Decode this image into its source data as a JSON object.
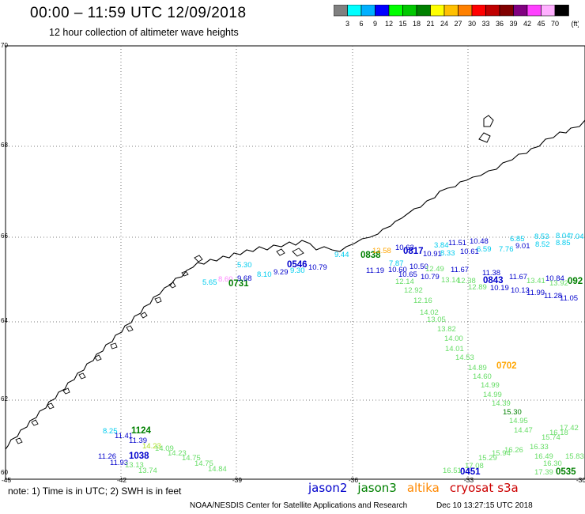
{
  "header": {
    "title": "00:00 – 11:59 UTC 12/09/2018",
    "subtitle": "12 hour collection of altimeter wave heights"
  },
  "colorbar": {
    "unit": "(ft)",
    "ticks": [
      "3",
      "6",
      "9",
      "12",
      "15",
      "18",
      "21",
      "24",
      "27",
      "30",
      "33",
      "36",
      "39",
      "42",
      "45",
      "70"
    ],
    "colors": [
      "#808080",
      "#00ffff",
      "#00b0ff",
      "#0000ff",
      "#00ff00",
      "#00c800",
      "#008000",
      "#ffff00",
      "#ffc000",
      "#ff8000",
      "#ff0000",
      "#c00000",
      "#800000",
      "#800080",
      "#ff40ff",
      "#ffb0ff",
      "#000000"
    ]
  },
  "map": {
    "lat_labels": [
      "70",
      "68",
      "66",
      "64",
      "62",
      "60"
    ],
    "lon_labels": [
      "-45",
      "-42",
      "-39",
      "-36",
      "-33",
      "-30"
    ],
    "labels": [
      {
        "t": "5.30",
        "c": "#00ccee"
      },
      {
        "t": "5.65",
        "c": "#00ccee"
      },
      {
        "t": "8.60",
        "c": "#ff88ff"
      },
      {
        "t": "0731",
        "c": "#008000"
      },
      {
        "t": "9.68",
        "c": "#0000cc"
      },
      {
        "t": "8.10",
        "c": "#00ccee"
      },
      {
        "t": "9.29",
        "c": "#0000cc"
      },
      {
        "t": "9.30",
        "c": "#00ccee"
      },
      {
        "t": "0546",
        "c": "#0000cc"
      },
      {
        "t": "10.79",
        "c": "#0000cc"
      },
      {
        "t": "9.44",
        "c": "#00ccee"
      },
      {
        "t": "0838",
        "c": "#008000"
      },
      {
        "t": "13.58",
        "c": "#ffa500"
      },
      {
        "t": "10.63",
        "c": "#0000cc"
      },
      {
        "t": "0817",
        "c": "#0000cc"
      },
      {
        "t": "3.84",
        "c": "#00ccee"
      },
      {
        "t": "11.51",
        "c": "#0000cc"
      },
      {
        "t": "10.48",
        "c": "#0000cc"
      },
      {
        "t": "10.91",
        "c": "#0000cc"
      },
      {
        "t": "8.33",
        "c": "#00ccee"
      },
      {
        "t": "10.61",
        "c": "#0000cc"
      },
      {
        "t": "6.85",
        "c": "#00ccee"
      },
      {
        "t": "8.53",
        "c": "#00ccee"
      },
      {
        "t": "8.04",
        "c": "#00ccee"
      },
      {
        "t": "7.04",
        "c": "#00ccee"
      },
      {
        "t": "6.59",
        "c": "#00ccee"
      },
      {
        "t": "7.76",
        "c": "#00ccee"
      },
      {
        "t": "9.01",
        "c": "#0000cc"
      },
      {
        "t": "8.52",
        "c": "#00ccee"
      },
      {
        "t": "8.85",
        "c": "#00ccee"
      },
      {
        "t": "7.87",
        "c": "#00ccee"
      },
      {
        "t": "10.50",
        "c": "#0000cc"
      },
      {
        "t": "11.19",
        "c": "#0000cc"
      },
      {
        "t": "10.60",
        "c": "#0000cc"
      },
      {
        "t": "10.79",
        "c": "#0000cc"
      },
      {
        "t": "10.65",
        "c": "#0000cc"
      },
      {
        "t": "11.67",
        "c": "#0000cc"
      },
      {
        "t": "12.49",
        "c": "#66dd66"
      },
      {
        "t": "12.14",
        "c": "#66dd66"
      },
      {
        "t": "13.14",
        "c": "#66dd66"
      },
      {
        "t": "12.38",
        "c": "#66dd66"
      },
      {
        "t": "12.89",
        "c": "#66dd66"
      },
      {
        "t": "11.38",
        "c": "#0000cc"
      },
      {
        "t": "0843",
        "c": "#0000cc"
      },
      {
        "t": "11.67",
        "c": "#0000cc"
      },
      {
        "t": "10.84",
        "c": "#0000cc"
      },
      {
        "t": "13.41",
        "c": "#66dd66"
      },
      {
        "t": "13.92",
        "c": "#66dd66"
      },
      {
        "t": "092",
        "c": "#008000"
      },
      {
        "t": "10.19",
        "c": "#0000cc"
      },
      {
        "t": "10.13",
        "c": "#0000cc"
      },
      {
        "t": "11.99",
        "c": "#0000cc"
      },
      {
        "t": "11.28",
        "c": "#0000cc"
      },
      {
        "t": "11.05",
        "c": "#0000cc"
      },
      {
        "t": "12.92",
        "c": "#66dd66"
      },
      {
        "t": "12.16",
        "c": "#66dd66"
      },
      {
        "t": "14.02",
        "c": "#66dd66"
      },
      {
        "t": "13.05",
        "c": "#66dd66"
      },
      {
        "t": "13.82",
        "c": "#66dd66"
      },
      {
        "t": "14.00",
        "c": "#66dd66"
      },
      {
        "t": "14.01",
        "c": "#66dd66"
      },
      {
        "t": "14.53",
        "c": "#66dd66"
      },
      {
        "t": "14.89",
        "c": "#66dd66"
      },
      {
        "t": "0702",
        "c": "#ffa500"
      },
      {
        "t": "14.60",
        "c": "#66dd66"
      },
      {
        "t": "14.99",
        "c": "#66dd66"
      },
      {
        "t": "14.99",
        "c": "#66dd66"
      },
      {
        "t": "14.39",
        "c": "#66dd66"
      },
      {
        "t": "15.30",
        "c": "#008000"
      },
      {
        "t": "14.95",
        "c": "#66dd66"
      },
      {
        "t": "14.47",
        "c": "#66dd66"
      },
      {
        "t": "16.18",
        "c": "#66dd66"
      },
      {
        "t": "17.42",
        "c": "#66dd66"
      },
      {
        "t": "15.74",
        "c": "#66dd66"
      },
      {
        "t": "16.33",
        "c": "#66dd66"
      },
      {
        "t": "16.26",
        "c": "#66dd66"
      },
      {
        "t": "16.49",
        "c": "#66dd66"
      },
      {
        "t": "15.83",
        "c": "#66dd66"
      },
      {
        "t": "16.30",
        "c": "#66dd66"
      },
      {
        "t": "0535",
        "c": "#008000"
      },
      {
        "t": "17.39",
        "c": "#66dd66"
      },
      {
        "t": "0451",
        "c": "#0000cc"
      },
      {
        "t": "16.51",
        "c": "#66dd66"
      },
      {
        "t": "17.08",
        "c": "#66dd66"
      },
      {
        "t": "15.29",
        "c": "#66dd66"
      },
      {
        "t": "15.94",
        "c": "#66dd66"
      },
      {
        "t": "8.25",
        "c": "#00ccee"
      },
      {
        "t": "11.41",
        "c": "#0000cc"
      },
      {
        "t": "1124",
        "c": "#008000"
      },
      {
        "t": "11.39",
        "c": "#0000cc"
      },
      {
        "t": "14.23",
        "c": "#aadd22"
      },
      {
        "t": "14.09",
        "c": "#66dd66"
      },
      {
        "t": "14.23",
        "c": "#66dd66"
      },
      {
        "t": "14.75",
        "c": "#66dd66"
      },
      {
        "t": "14.75",
        "c": "#66dd66"
      },
      {
        "t": "14.84",
        "c": "#66dd66"
      },
      {
        "t": "11.26",
        "c": "#0000cc"
      },
      {
        "t": "1038",
        "c": "#0000cc"
      },
      {
        "t": "11.93",
        "c": "#0000cc"
      },
      {
        "t": "13.13",
        "c": "#66dd66"
      },
      {
        "t": "13.74",
        "c": "#66dd66"
      }
    ]
  },
  "footer": {
    "note": "note:  1) Time is in UTC;  2) SWH is in feet",
    "satellites": [
      {
        "name": "jason2",
        "color": "#0000cc"
      },
      {
        "name": "jason3",
        "color": "#008000"
      },
      {
        "name": "altika",
        "color": "#ff8800"
      },
      {
        "name": "cryosat",
        "color": "#cc0000"
      },
      {
        "name": "s3a",
        "color": "#cc0000"
      }
    ],
    "credit": "NOAA/NESDIS Center for Satellite Applications and Research",
    "timestamp": "Dec 10 13:27:15 UTC 2018"
  }
}
